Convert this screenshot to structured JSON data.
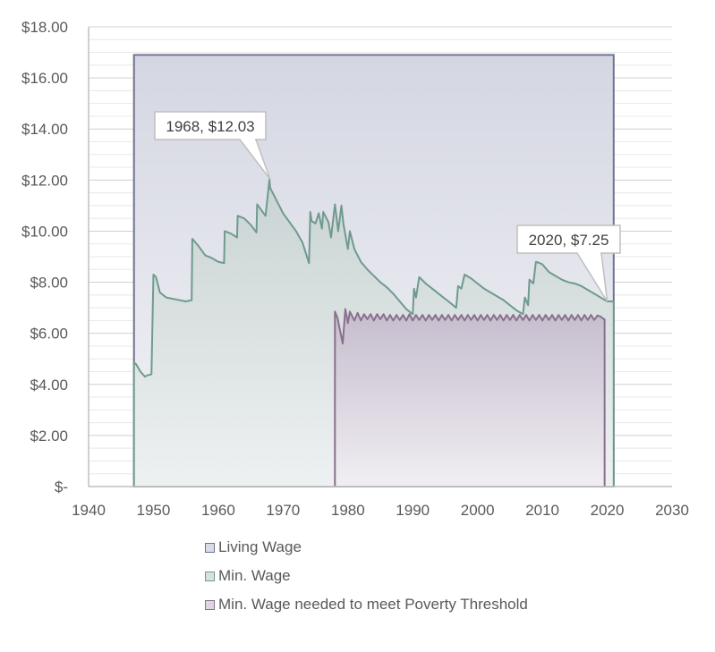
{
  "chart_data": {
    "type": "area",
    "title": "",
    "xlabel": "",
    "ylabel": "",
    "xlim": [
      1940,
      2030
    ],
    "ylim": [
      0,
      18
    ],
    "x_ticks": [
      "1940",
      "1950",
      "1960",
      "1970",
      "1980",
      "1990",
      "2000",
      "2010",
      "2020",
      "2030"
    ],
    "y_ticks": [
      "$-",
      "$2.00",
      "$4.00",
      "$6.00",
      "$8.00",
      "$10.00",
      "$12.00",
      "$14.00",
      "$16.00",
      "$18.00"
    ],
    "grid": {
      "major_y": true,
      "minor_y": true
    },
    "legend_position": "bottom",
    "series": [
      {
        "name": "Living Wage",
        "color": "#6f7390",
        "fill": "#d9dbe5",
        "x": [
          1947,
          2021
        ],
        "values": [
          16.9,
          16.9
        ]
      },
      {
        "name": "Min. Wage",
        "color": "#6f9a8e",
        "fill": "#cfd8d8",
        "x": [
          1947,
          1947.3,
          1948,
          1948.7,
          1949,
          1949.7,
          1950,
          1950.4,
          1951,
          1952,
          1953,
          1954,
          1955,
          1955.9,
          1956,
          1957,
          1958,
          1959,
          1960,
          1960.9,
          1961,
          1962,
          1962.9,
          1963,
          1964,
          1965,
          1965.9,
          1966,
          1967,
          1967.3,
          1967.9,
          1968,
          1969,
          1970,
          1971,
          1972,
          1973,
          1974,
          1974.2,
          1974.4,
          1975,
          1975.5,
          1976,
          1976.2,
          1977,
          1977.4,
          1978,
          1978.5,
          1979,
          1979.3,
          1980,
          1980.3,
          1981,
          1982,
          1983,
          1984,
          1985,
          1986,
          1987,
          1988,
          1989,
          1990,
          1990.2,
          1990.5,
          1991,
          1992,
          1993,
          1994,
          1995,
          1996,
          1996.7,
          1997,
          1997.5,
          1998,
          1999,
          2000,
          2001,
          2002,
          2003,
          2004,
          2005,
          2006,
          2007,
          2007.3,
          2007.8,
          2008,
          2008.6,
          2009,
          2009.6,
          2010,
          2011,
          2012,
          2013,
          2014,
          2015,
          2016,
          2017,
          2018,
          2019,
          2020
        ],
        "values": [
          4.85,
          4.8,
          4.5,
          4.3,
          4.35,
          4.4,
          8.3,
          8.2,
          7.6,
          7.4,
          7.35,
          7.3,
          7.25,
          7.3,
          9.7,
          9.4,
          9.05,
          8.95,
          8.8,
          8.75,
          10.0,
          9.9,
          9.75,
          10.6,
          10.5,
          10.25,
          9.95,
          11.05,
          10.7,
          10.6,
          12.03,
          11.7,
          11.2,
          10.7,
          10.35,
          10.0,
          9.55,
          8.75,
          10.75,
          10.4,
          10.3,
          10.7,
          10.1,
          10.75,
          10.35,
          9.75,
          11.05,
          10.0,
          11.0,
          10.3,
          9.3,
          10.0,
          9.3,
          8.8,
          8.5,
          8.25,
          8.0,
          7.8,
          7.55,
          7.25,
          6.95,
          6.75,
          7.75,
          7.4,
          8.2,
          7.95,
          7.75,
          7.55,
          7.35,
          7.15,
          7.0,
          7.85,
          7.75,
          8.3,
          8.15,
          7.95,
          7.75,
          7.6,
          7.45,
          7.3,
          7.1,
          6.9,
          6.75,
          7.4,
          7.1,
          8.1,
          7.95,
          8.8,
          8.75,
          8.7,
          8.4,
          8.25,
          8.1,
          8.0,
          7.95,
          7.85,
          7.7,
          7.55,
          7.4,
          7.25
        ]
      },
      {
        "name": "Min. Wage needed to meet Poverty Threshold",
        "color": "#8a6f8f",
        "fill": "#c9bfcf",
        "x": [
          1978,
          1978.4,
          1979.2,
          1979.6,
          1980,
          1980.3,
          1981,
          1981.5,
          1982,
          1982.5,
          1983,
          1983.5,
          1984,
          1984.5,
          1985,
          1985.5,
          1986,
          1986.5,
          1987,
          1987.5,
          1988,
          1988.5,
          1989,
          1989.5,
          1990,
          1990.5,
          1991,
          1991.5,
          1992,
          1992.5,
          1993,
          1993.5,
          1994,
          1994.5,
          1995,
          1995.5,
          1996,
          1996.5,
          1997,
          1997.5,
          1998,
          1998.5,
          1999,
          1999.5,
          2000,
          2000.5,
          2001,
          2001.5,
          2002,
          2002.5,
          2003,
          2003.5,
          2004,
          2004.5,
          2005,
          2005.5,
          2006,
          2006.5,
          2007,
          2007.5,
          2008,
          2008.5,
          2009,
          2009.5,
          2010,
          2010.5,
          2011,
          2011.5,
          2012,
          2012.5,
          2013,
          2013.5,
          2014,
          2014.5,
          2015,
          2015.5,
          2016,
          2016.5,
          2017,
          2017.5,
          2018,
          2018.5,
          2019,
          2019.5
        ],
        "values": [
          6.85,
          6.6,
          5.6,
          6.95,
          6.4,
          6.85,
          6.5,
          6.8,
          6.5,
          6.75,
          6.55,
          6.75,
          6.5,
          6.75,
          6.55,
          6.75,
          6.5,
          6.72,
          6.5,
          6.72,
          6.52,
          6.72,
          6.5,
          6.75,
          6.5,
          6.72,
          6.52,
          6.72,
          6.5,
          6.72,
          6.52,
          6.72,
          6.5,
          6.72,
          6.52,
          6.72,
          6.5,
          6.72,
          6.52,
          6.72,
          6.5,
          6.72,
          6.52,
          6.72,
          6.5,
          6.72,
          6.52,
          6.72,
          6.5,
          6.72,
          6.52,
          6.72,
          6.5,
          6.72,
          6.52,
          6.72,
          6.5,
          6.72,
          6.52,
          6.72,
          6.5,
          6.72,
          6.52,
          6.72,
          6.5,
          6.72,
          6.52,
          6.72,
          6.5,
          6.72,
          6.52,
          6.72,
          6.5,
          6.72,
          6.52,
          6.72,
          6.5,
          6.72,
          6.52,
          6.72,
          6.52,
          6.7,
          6.65,
          6.55
        ]
      }
    ],
    "annotations": [
      {
        "text": "1968,  $12.03",
        "x": 1968,
        "y": 12.03
      },
      {
        "text": "2020,  $7.25",
        "x": 2020,
        "y": 7.25
      }
    ]
  },
  "legend": {
    "items": [
      {
        "label": "Living Wage",
        "border": "#6f7390",
        "fill": "#d9dbe5"
      },
      {
        "label": "Min. Wage",
        "border": "#6f9a8e",
        "fill": "#d6e2de"
      },
      {
        "label": "Min. Wage needed to meet Poverty Threshold",
        "border": "#8a6f8f",
        "fill": "#ded6e2"
      }
    ]
  }
}
